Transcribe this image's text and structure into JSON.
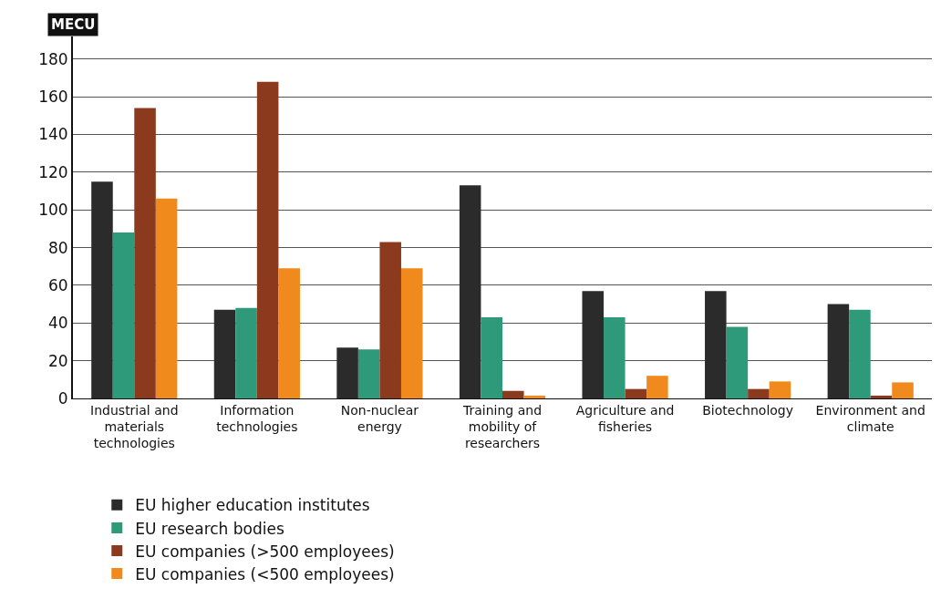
{
  "chart_data": {
    "type": "bar",
    "ylabel": "MECU",
    "categories": [
      "Industrial and materials technologies",
      "Information technologies",
      "Non-nuclear energy",
      "Training and mobility of researchers",
      "Agriculture and fisheries",
      "Biotechnology",
      "Environment and climate"
    ],
    "series": [
      {
        "name": "EU higher education institutes",
        "color": "#2b2b2b",
        "values": [
          115,
          47,
          27,
          113,
          57,
          57,
          50
        ]
      },
      {
        "name": "EU research bodies",
        "color": "#2e9a7a",
        "values": [
          88,
          48,
          26,
          43,
          43,
          38,
          47
        ]
      },
      {
        "name": "EU companies (>500 employees)",
        "color": "#8b3a1e",
        "values": [
          154,
          168,
          83,
          4,
          5,
          5,
          1.5
        ]
      },
      {
        "name": "EU companies (<500 employees)",
        "color": "#f08a1c",
        "values": [
          106,
          69,
          69,
          1.5,
          12,
          9,
          8.5
        ]
      }
    ],
    "ylim": [
      0,
      192
    ],
    "yticks": [
      0,
      20,
      40,
      60,
      80,
      100,
      120,
      140,
      160,
      180
    ],
    "grid": "y",
    "legend": "bottom"
  }
}
